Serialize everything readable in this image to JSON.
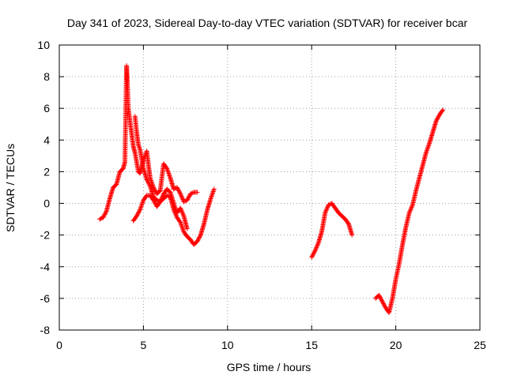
{
  "chart_data": {
    "type": "scatter",
    "title": "Day 341 of 2023, Sidereal Day-to-day VTEC variation (SDTVAR) for receiver bcar",
    "xlabel": "GPS time / hours",
    "ylabel": "SDTVAR / TECUs",
    "xlim": [
      0,
      25
    ],
    "ylim": [
      -8,
      10
    ],
    "xticks": [
      0,
      5,
      10,
      15,
      20,
      25
    ],
    "yticks": [
      -8,
      -6,
      -4,
      -2,
      0,
      2,
      4,
      6,
      8,
      10
    ],
    "grid": true,
    "marker": "+",
    "color": "#ff0000",
    "series": [
      {
        "name": "segment-1",
        "x": [
          2.4,
          2.6,
          2.8,
          3.0,
          3.2,
          3.4,
          3.6,
          3.8,
          3.9,
          4.0,
          4.05,
          4.1,
          4.2,
          4.3,
          4.4,
          4.5,
          4.6,
          4.7,
          4.8,
          5.0,
          5.2,
          5.3,
          5.4,
          5.6,
          5.8,
          6.0,
          6.2,
          6.4,
          6.6,
          6.8,
          7.0,
          7.2,
          7.4,
          7.6,
          7.8,
          8.0,
          8.2
        ],
        "y": [
          -1.0,
          -0.9,
          -0.5,
          0.3,
          1.0,
          1.2,
          2.0,
          2.2,
          2.6,
          8.7,
          7.5,
          6.0,
          5.2,
          4.4,
          3.6,
          3.2,
          2.6,
          2.0,
          1.9,
          2.7,
          3.3,
          2.4,
          1.6,
          1.0,
          0.6,
          0.8,
          2.5,
          2.2,
          1.6,
          0.9,
          1.0,
          0.6,
          0.1,
          0.2,
          0.6,
          0.7,
          0.7
        ]
      },
      {
        "name": "segment-2",
        "x": [
          4.5,
          4.6,
          4.7,
          4.8,
          5.0,
          5.2,
          5.4,
          5.6,
          5.8,
          6.0,
          6.2,
          6.4,
          6.6,
          6.8,
          7.0,
          7.2,
          7.4,
          7.6,
          7.8,
          8.0,
          8.2,
          8.4,
          8.6,
          8.8,
          9.0,
          9.2
        ],
        "y": [
          5.5,
          4.5,
          3.7,
          3.4,
          2.2,
          1.5,
          1.1,
          0.4,
          0.2,
          0.1,
          0.3,
          0.5,
          0.4,
          -0.4,
          -0.9,
          -1.2,
          -1.8,
          -2.1,
          -2.3,
          -2.6,
          -2.4,
          -2.0,
          -1.3,
          -0.4,
          0.3,
          0.9
        ]
      },
      {
        "name": "segment-3",
        "x": [
          4.4,
          4.6,
          4.8,
          5.0,
          5.2,
          5.4,
          5.6,
          5.8,
          6.0,
          6.2,
          6.4,
          6.6,
          6.8,
          7.0,
          7.2,
          7.4,
          7.6
        ],
        "y": [
          -1.1,
          -0.8,
          -0.4,
          0.2,
          0.5,
          0.5,
          0.2,
          -0.2,
          0.1,
          0.6,
          0.9,
          0.7,
          0.0,
          -0.6,
          -0.3,
          -0.8,
          -1.6
        ]
      },
      {
        "name": "segment-4",
        "x": [
          15.0,
          15.2,
          15.4,
          15.6,
          15.8,
          16.0,
          16.2,
          16.4,
          16.6,
          16.8,
          17.0,
          17.2,
          17.4
        ],
        "y": [
          -3.4,
          -3.0,
          -2.5,
          -1.8,
          -0.6,
          -0.1,
          0.0,
          -0.3,
          -0.6,
          -0.8,
          -1.0,
          -1.3,
          -2.0
        ]
      },
      {
        "name": "segment-5",
        "x": [
          18.8,
          19.0,
          19.2,
          19.4,
          19.6,
          19.8,
          20.0,
          20.2,
          20.4,
          20.6,
          20.8,
          21.0,
          21.2,
          21.4,
          21.6,
          21.8,
          22.0,
          22.2,
          22.4,
          22.6,
          22.8
        ],
        "y": [
          -6.0,
          -5.8,
          -6.2,
          -6.6,
          -6.9,
          -6.0,
          -4.8,
          -3.8,
          -2.6,
          -1.5,
          -0.6,
          -0.1,
          0.8,
          1.6,
          2.4,
          3.2,
          3.8,
          4.5,
          5.2,
          5.6,
          5.9
        ]
      }
    ]
  }
}
